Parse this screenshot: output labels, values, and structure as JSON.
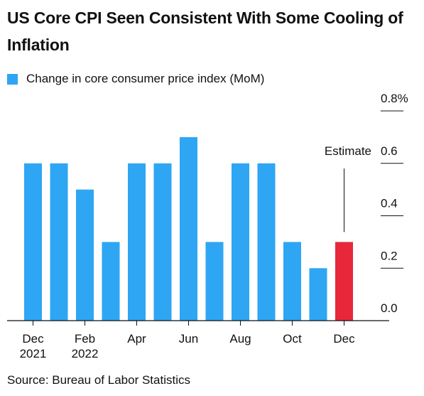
{
  "title": "US Core CPI Seen Consistent With Some Cooling of Inflation",
  "legend": {
    "label": "Change in core consumer price index (MoM)",
    "color": "#2ea6f3"
  },
  "source": "Source: Bureau of Labor Statistics",
  "chart_data": {
    "type": "bar",
    "categories": [
      "Dec 2021",
      "Jan 2022",
      "Feb 2022",
      "Mar 2022",
      "Apr 2022",
      "May 2022",
      "Jun 2022",
      "Jul 2022",
      "Aug 2022",
      "Sep 2022",
      "Oct 2022",
      "Nov 2022",
      "Dec 2022"
    ],
    "x_tick_labels": [
      {
        "index": 0,
        "line1": "Dec",
        "line2": "2021"
      },
      {
        "index": 2,
        "line1": "Feb",
        "line2": "2022"
      },
      {
        "index": 4,
        "line1": "Apr",
        "line2": ""
      },
      {
        "index": 6,
        "line1": "Jun",
        "line2": ""
      },
      {
        "index": 8,
        "line1": "Aug",
        "line2": ""
      },
      {
        "index": 10,
        "line1": "Oct",
        "line2": ""
      },
      {
        "index": 12,
        "line1": "Dec",
        "line2": ""
      }
    ],
    "values": [
      0.6,
      0.6,
      0.5,
      0.3,
      0.6,
      0.6,
      0.7,
      0.3,
      0.6,
      0.6,
      0.3,
      0.2,
      0.3
    ],
    "estimate_index": 12,
    "colors": {
      "actual": "#2ea6f3",
      "estimate": "#e8273b"
    },
    "annotation": "Estimate",
    "ylim": [
      0,
      0.8
    ],
    "y_ticks": [
      {
        "value": 0.0,
        "label": "0.0"
      },
      {
        "value": 0.2,
        "label": "0.2"
      },
      {
        "value": 0.4,
        "label": "0.4"
      },
      {
        "value": 0.6,
        "label": "0.6"
      },
      {
        "value": 0.8,
        "label": "0.8%"
      }
    ],
    "grid": true,
    "axis_side": "right"
  }
}
